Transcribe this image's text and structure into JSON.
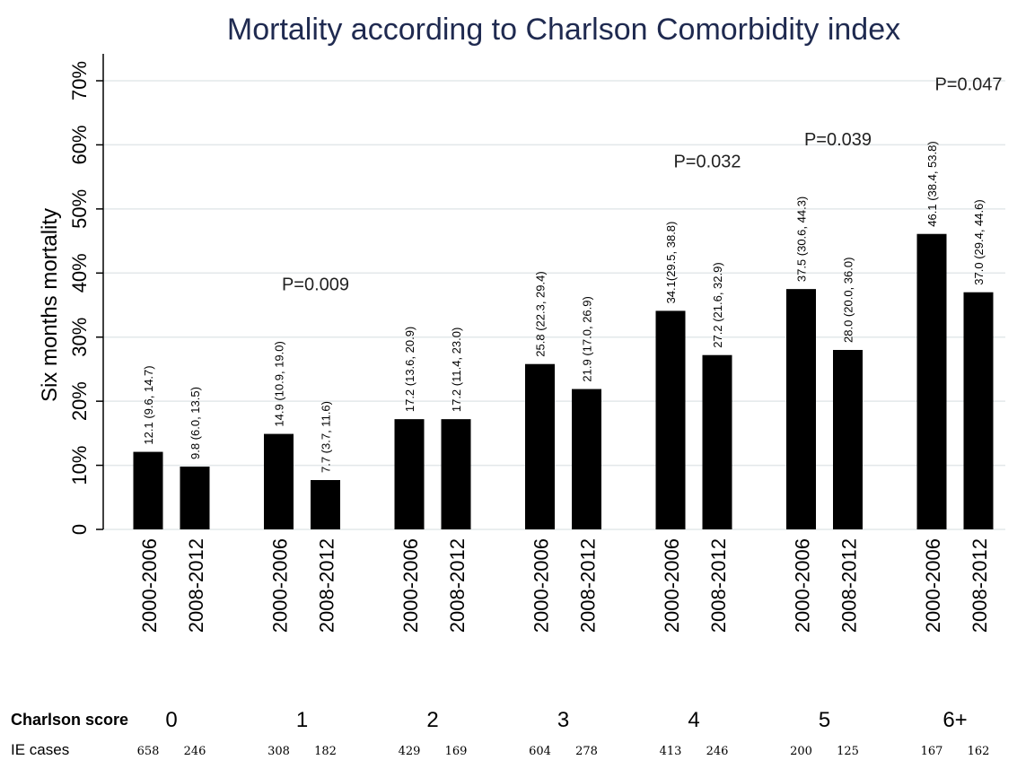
{
  "chart_data": {
    "type": "bar",
    "title": "Mortality according to Charlson Comorbidity index",
    "y_label": "Six months mortality",
    "categories": [
      "2000-2006",
      "2008-2012",
      "2000-2006",
      "2008-2012",
      "2000-2006",
      "2008-2012",
      "2000-2006",
      "2008-2012",
      "2000-2006",
      "2008-2012",
      "2000-2006",
      "2008-2012",
      "2000-2006",
      "2008-2012"
    ],
    "values": [
      12.1,
      9.8,
      14.9,
      7.7,
      17.2,
      17.2,
      25.8,
      21.9,
      34.1,
      27.2,
      37.5,
      28.0,
      46.1,
      37.0
    ],
    "value_labels": [
      "12.1 (9.6, 14.7)",
      "9.8 (6.0, 13.5)",
      "14.9 (10.9, 19.0)",
      "7.7 (3.7, 11.6)",
      "17.2 (13.6, 20.9)",
      "17.2 (11.4, 23.0)",
      "25.8 (22.3, 29.4)",
      "21.9 (17.0, 26.9)",
      "34.1(29.5, 38.8)",
      "27.2 (21.6, 32.9)",
      "37.5 (30.6, 44.3)",
      "28.0 (20.0, 36.0)",
      "46.1 (38.4, 53.8)",
      "37.0 (29.4, 44.6)"
    ],
    "color": "#000000",
    "ylim": [
      0,
      70
    ],
    "yticks": [
      0,
      {
        "value": 10,
        "label": "10%"
      },
      {
        "value": 20,
        "label": "20%"
      },
      {
        "value": 30,
        "label": "30%"
      },
      {
        "value": 40,
        "label": "40%"
      },
      {
        "value": 50,
        "label": "50%"
      },
      {
        "value": 60,
        "label": "60%"
      },
      {
        "value": 70,
        "label": "70%"
      }
    ],
    "grid": true,
    "group_title": "Charlson score",
    "cases_title": "IE cases",
    "groups": [
      {
        "score": "0",
        "ie_cases": [
          658,
          246
        ]
      },
      {
        "score": "1",
        "p_value": "P=0.009",
        "ie_cases": [
          308,
          182
        ]
      },
      {
        "score": "2",
        "ie_cases": [
          429,
          169
        ]
      },
      {
        "score": "3",
        "ie_cases": [
          604,
          278
        ]
      },
      {
        "score": "4",
        "p_value": "P=0.032",
        "ie_cases": [
          413,
          246
        ]
      },
      {
        "score": "5",
        "p_value": "P=0.039",
        "ie_cases": [
          200,
          125
        ]
      },
      {
        "score": "6+",
        "p_value": "P=0.047",
        "ie_cases": [
          167,
          162
        ]
      }
    ]
  }
}
